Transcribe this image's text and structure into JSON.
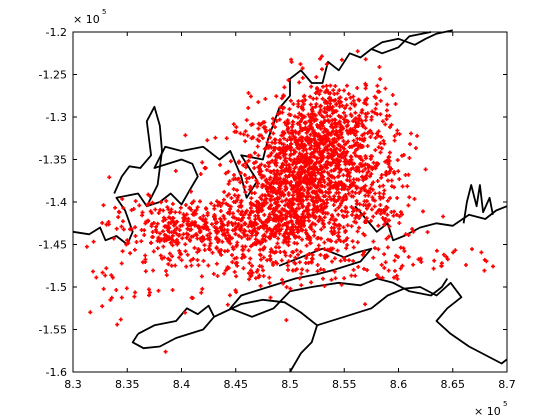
{
  "chart_data": {
    "type": "scatter",
    "title": "",
    "xlabel": "",
    "ylabel": "",
    "xlim": [
      830000,
      870000
    ],
    "ylim": [
      -160000,
      -120000
    ],
    "x_exponent_label": "× 10",
    "x_exponent_power": "5",
    "y_exponent_label": "× 10",
    "y_exponent_power": "5",
    "x_ticks": [
      8.3,
      8.35,
      8.4,
      8.45,
      8.5,
      8.55,
      8.6,
      8.65,
      8.7
    ],
    "x_tick_labels": [
      "8.3",
      "8.35",
      "8.4",
      "8.45",
      "8.5",
      "8.55",
      "8.6",
      "8.65",
      "8.7"
    ],
    "y_ticks": [
      -1.2,
      -1.25,
      -1.3,
      -1.35,
      -1.4,
      -1.45,
      -1.5,
      -1.55,
      -1.6
    ],
    "y_tick_labels": [
      "-1.2",
      "-1.25",
      "-1.3",
      "-1.35",
      "-1.4",
      "-1.45",
      "-1.5",
      "-1.55",
      "-1.6"
    ],
    "grid": false,
    "legend": "none",
    "series": [
      {
        "marker": "+",
        "color": "#ff0000",
        "clusters": [
          {
            "cx": 851500,
            "cy": -137000,
            "sx": 3200,
            "sy": 4200,
            "n": 1100
          },
          {
            "cx": 854000,
            "cy": -131000,
            "sx": 2600,
            "sy": 3000,
            "n": 380
          },
          {
            "cx": 848500,
            "cy": -141500,
            "sx": 2600,
            "sy": 3000,
            "n": 320
          },
          {
            "cx": 843000,
            "cy": -143000,
            "sx": 4200,
            "sy": 1700,
            "n": 260
          },
          {
            "cx": 838500,
            "cy": -142800,
            "sx": 2600,
            "sy": 1600,
            "n": 120
          },
          {
            "cx": 857500,
            "cy": -138500,
            "sx": 2000,
            "sy": 3200,
            "n": 160
          },
          {
            "cx": 846000,
            "cy": -146500,
            "sx": 3000,
            "sy": 2000,
            "n": 90
          },
          {
            "cx": 856500,
            "cy": -146500,
            "sx": 4500,
            "sy": 1800,
            "n": 80
          },
          {
            "cx": 836500,
            "cy": -148500,
            "sx": 3200,
            "sy": 3000,
            "n": 45
          },
          {
            "cx": 864000,
            "cy": -146500,
            "sx": 3000,
            "sy": 1200,
            "n": 22
          },
          {
            "cx": 832000,
            "cy": -150500,
            "sx": 1500,
            "sy": 1800,
            "n": 8
          }
        ]
      }
    ],
    "coastline": [
      {
        "name": "upper-left-shore",
        "points": [
          [
            830000,
            -143500
          ],
          [
            831500,
            -143800
          ],
          [
            832500,
            -143000
          ],
          [
            833000,
            -144500
          ],
          [
            834000,
            -144000
          ],
          [
            835000,
            -145000
          ],
          [
            835500,
            -143500
          ],
          [
            834800,
            -141000
          ],
          [
            834000,
            -139500
          ],
          [
            836000,
            -139000
          ],
          [
            836800,
            -140500
          ],
          [
            838000,
            -140000
          ],
          [
            839000,
            -139000
          ],
          [
            840000,
            -140300
          ],
          [
            840800,
            -138500
          ],
          [
            841500,
            -137000
          ],
          [
            841000,
            -135500
          ],
          [
            840000,
            -135000
          ],
          [
            837500,
            -136000
          ],
          [
            838500,
            -133500
          ],
          [
            840000,
            -134000
          ],
          [
            842000,
            -133500
          ],
          [
            843500,
            -135000
          ],
          [
            844500,
            -134000
          ],
          [
            845500,
            -137000
          ],
          [
            846000,
            -139500
          ],
          [
            847000,
            -137500
          ],
          [
            846000,
            -135500
          ],
          [
            845500,
            -134500
          ],
          [
            847500,
            -135000
          ],
          [
            848000,
            -132500
          ],
          [
            849000,
            -129000
          ],
          [
            850000,
            -127500
          ],
          [
            850000,
            -125500
          ],
          [
            851000,
            -124500
          ],
          [
            852000,
            -126000
          ],
          [
            853000,
            -126000
          ],
          [
            853500,
            -123500
          ],
          [
            854500,
            -124500
          ],
          [
            855500,
            -122500
          ],
          [
            856500,
            -123000
          ],
          [
            857500,
            -122000
          ],
          [
            858500,
            -122500
          ],
          [
            860000,
            -121800
          ],
          [
            861000,
            -120500
          ],
          [
            863000,
            -120000
          ]
        ]
      },
      {
        "name": "left-inlet-arm",
        "points": [
          [
            836800,
            -140500
          ],
          [
            837800,
            -138000
          ],
          [
            838200,
            -134000
          ],
          [
            838000,
            -131000
          ],
          [
            837500,
            -128800
          ],
          [
            836800,
            -130500
          ],
          [
            837200,
            -134500
          ],
          [
            836200,
            -136000
          ],
          [
            835200,
            -135800
          ],
          [
            834500,
            -137000
          ],
          [
            833800,
            -139000
          ]
        ]
      },
      {
        "name": "right-shore",
        "points": [
          [
            856000,
            -140500
          ],
          [
            857000,
            -142000
          ],
          [
            858000,
            -143500
          ],
          [
            859000,
            -142500
          ],
          [
            859500,
            -144500
          ],
          [
            860500,
            -144000
          ],
          [
            862000,
            -143000
          ],
          [
            863500,
            -142500
          ],
          [
            865000,
            -142800
          ],
          [
            866500,
            -141500
          ],
          [
            868000,
            -142000
          ],
          [
            869000,
            -141000
          ],
          [
            870000,
            -140500
          ]
        ]
      },
      {
        "name": "middle-barrier-shore",
        "points": [
          [
            849000,
            -147500
          ],
          [
            851000,
            -146500
          ],
          [
            853000,
            -145500
          ],
          [
            855000,
            -146500
          ],
          [
            856000,
            -146000
          ],
          [
            857500,
            -145500
          ],
          [
            856500,
            -147000
          ],
          [
            854000,
            -148000
          ],
          [
            852500,
            -148500
          ],
          [
            850500,
            -149000
          ],
          [
            848000,
            -150000
          ],
          [
            845500,
            -151000
          ],
          [
            844500,
            -152500
          ],
          [
            846500,
            -153500
          ],
          [
            848500,
            -152500
          ],
          [
            850000,
            -150500
          ],
          [
            852000,
            -150000
          ],
          [
            854500,
            -149500
          ],
          [
            856500,
            -149800
          ],
          [
            858000,
            -149000
          ],
          [
            859500,
            -149500
          ],
          [
            861000,
            -150500
          ],
          [
            863000,
            -151000
          ],
          [
            864000,
            -150000
          ],
          [
            864500,
            -149000
          ]
        ]
      },
      {
        "name": "lower-left-island",
        "points": [
          [
            836000,
            -155500
          ],
          [
            837500,
            -154500
          ],
          [
            839500,
            -154000
          ],
          [
            840500,
            -152500
          ],
          [
            841500,
            -153200
          ],
          [
            842500,
            -152200
          ],
          [
            843000,
            -153500
          ],
          [
            842000,
            -155000
          ],
          [
            839500,
            -156000
          ],
          [
            838000,
            -157000
          ],
          [
            836500,
            -157200
          ],
          [
            835500,
            -156500
          ],
          [
            836000,
            -155500
          ]
        ]
      },
      {
        "name": "lower-right-land",
        "points": [
          [
            843000,
            -153500
          ],
          [
            845500,
            -152000
          ],
          [
            847500,
            -151500
          ],
          [
            849500,
            -151800
          ],
          [
            851000,
            -153000
          ],
          [
            852500,
            -154500
          ],
          [
            852000,
            -156500
          ],
          [
            851000,
            -157800
          ],
          [
            850000,
            -160000
          ]
        ]
      },
      {
        "name": "lower-right-headland",
        "points": [
          [
            852500,
            -154500
          ],
          [
            855000,
            -153500
          ],
          [
            857500,
            -152500
          ],
          [
            859000,
            -151000
          ],
          [
            860500,
            -150200
          ],
          [
            862000,
            -150000
          ],
          [
            863500,
            -151000
          ],
          [
            864800,
            -149500
          ],
          [
            865800,
            -151200
          ],
          [
            864500,
            -152500
          ],
          [
            863500,
            -154000
          ],
          [
            864800,
            -155500
          ],
          [
            866500,
            -157000
          ],
          [
            868000,
            -158000
          ],
          [
            869500,
            -159000
          ],
          [
            870000,
            -158500
          ]
        ]
      },
      {
        "name": "upper-right-estuary",
        "points": [
          [
            857500,
            -122000
          ],
          [
            858500,
            -121200
          ],
          [
            860000,
            -120800
          ],
          [
            861500,
            -121500
          ],
          [
            862500,
            -120800
          ],
          [
            863500,
            -120200
          ],
          [
            865000,
            -119800
          ]
        ]
      },
      {
        "name": "right-edge-inlets",
        "points": [
          [
            866000,
            -142500
          ],
          [
            866300,
            -140000
          ],
          [
            866700,
            -138000
          ],
          [
            867200,
            -140500
          ],
          [
            867500,
            -138000
          ],
          [
            867800,
            -141200
          ],
          [
            868400,
            -139500
          ],
          [
            868700,
            -141500
          ]
        ]
      }
    ]
  }
}
